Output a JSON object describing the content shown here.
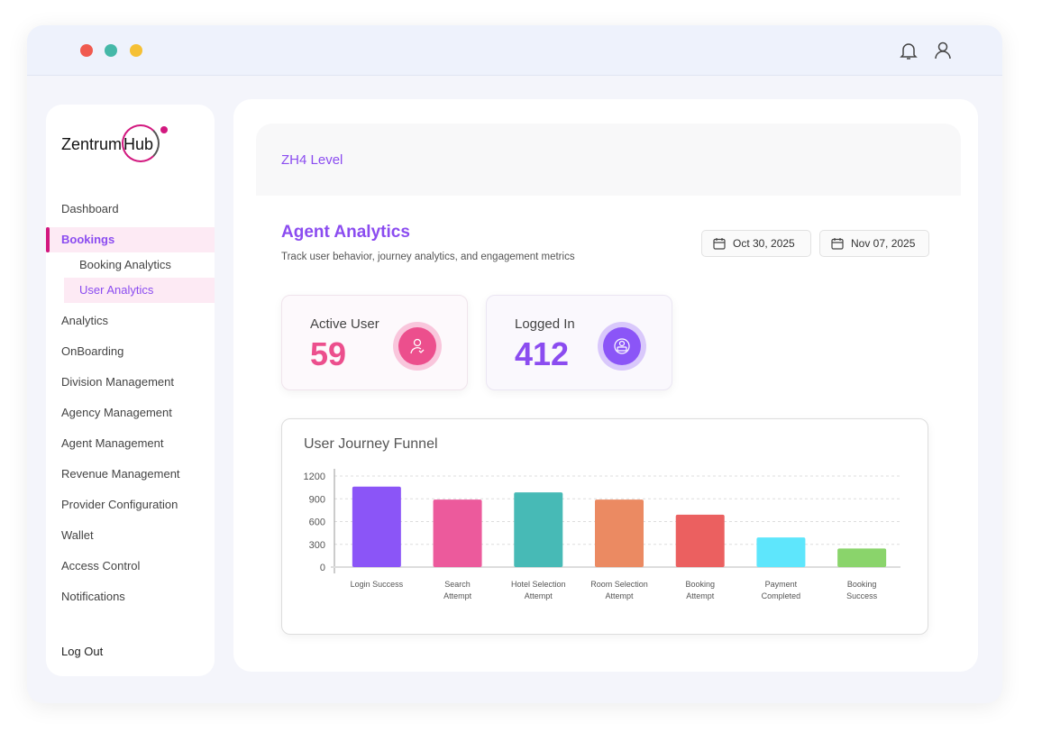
{
  "window": {
    "dots": [
      "#f05a4f",
      "#45b8a8",
      "#f5c035"
    ]
  },
  "sidebar": {
    "logo": "ZentrumHub",
    "logo_left": "Zentrum",
    "logo_right": "Hub",
    "items": [
      {
        "label": "Dashboard"
      },
      {
        "label": "Bookings",
        "active": true
      },
      {
        "label": "Booking Analytics",
        "sub": true
      },
      {
        "label": "User Analytics",
        "sub": true,
        "active": true
      },
      {
        "label": "Analytics"
      },
      {
        "label": "OnBoarding"
      },
      {
        "label": "Division Management"
      },
      {
        "label": "Agency Management"
      },
      {
        "label": "Agent Management"
      },
      {
        "label": "Revenue Management"
      },
      {
        "label": "Provider Configuration"
      },
      {
        "label": "Wallet"
      },
      {
        "label": "Access Control"
      },
      {
        "label": "Notifications"
      }
    ],
    "logout": "Log Out"
  },
  "header": {
    "level": "ZH4 Level"
  },
  "page": {
    "title": "Agent Analytics",
    "subtitle": "Track user behavior, journey analytics, and engagement metrics",
    "date_from": "Oct 30, 2025",
    "date_to": "Nov 07, 2025"
  },
  "stats": [
    {
      "label": "Active User",
      "value": "59",
      "color": "#ec4f8d"
    },
    {
      "label": "Logged In",
      "value": "412",
      "color": "#8b4cf0"
    }
  ],
  "chart_data": {
    "type": "bar",
    "title": "User Journey Funnel",
    "categories": [
      [
        "Login Success"
      ],
      [
        "Search",
        "Attempt"
      ],
      [
        "Hotel Selection",
        "Attempt"
      ],
      [
        "Room Selection",
        "Attempt"
      ],
      [
        "Booking",
        "Attempt"
      ],
      [
        "Payment",
        "Completed"
      ],
      [
        "Booking",
        "Success"
      ]
    ],
    "values": [
      1060,
      890,
      985,
      890,
      690,
      390,
      245
    ],
    "colors": [
      "#8b55f7",
      "#ec5a9c",
      "#47bab6",
      "#eb8a62",
      "#eb6060",
      "#5ee6fc",
      "#8ad46b"
    ],
    "yticks": [
      0,
      300,
      600,
      900,
      1200
    ],
    "ylim": [
      0,
      1200
    ],
    "grid": true
  }
}
